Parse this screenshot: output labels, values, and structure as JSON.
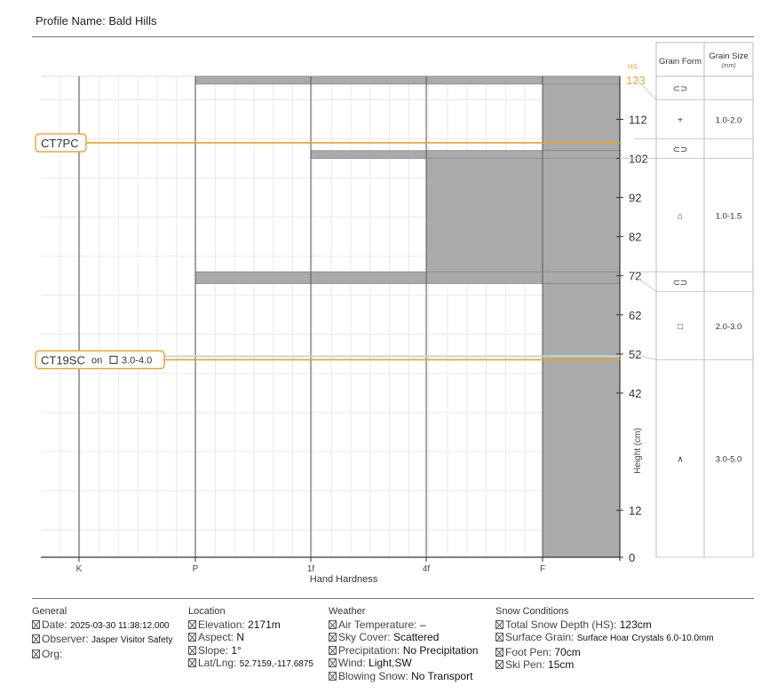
{
  "profile": {
    "label": "Profile Name:",
    "name": "Bald Hills"
  },
  "chart_data": {
    "type": "bar",
    "xlabel": "Hand Hardness",
    "ylabel": "Height (cm)",
    "x_ticks": [
      "K",
      "P",
      "1f",
      "4f",
      "F"
    ],
    "y_ticks": [
      0,
      12,
      42,
      52,
      62,
      72,
      82,
      92,
      102,
      112,
      123
    ],
    "ylim": [
      0,
      123
    ],
    "hs_label": "HS",
    "hs_value": 123,
    "layers": [
      {
        "top": 123,
        "bottom": 72,
        "hardness": "F"
      },
      {
        "top": 123,
        "bottom": 121,
        "hardness": "P"
      },
      {
        "top": 104,
        "bottom": 72,
        "hardness": "4f"
      },
      {
        "top": 104,
        "bottom": 102,
        "hardness": "1f"
      },
      {
        "top": 73,
        "bottom": 70,
        "hardness": "P"
      },
      {
        "top": 70,
        "bottom": 0,
        "hardness": "F"
      }
    ],
    "tests": [
      {
        "label": "CT7PC",
        "height": 106
      },
      {
        "label": "CT19SC",
        "on_text": "on",
        "grain_size": "3.0-4.0",
        "height": 50.5
      }
    ],
    "grain_header": {
      "form": "Grain Form",
      "size": "Grain Size",
      "size_unit": "(mm)"
    },
    "grain_rows": [
      {
        "top": 123,
        "bottom": 117,
        "form": "⊂⊃",
        "size": ""
      },
      {
        "top": 117,
        "bottom": 107,
        "form": "+",
        "size": "1.0-2.0"
      },
      {
        "top": 107,
        "bottom": 102,
        "form": "⊂⊃",
        "size": ""
      },
      {
        "top": 102,
        "bottom": 73,
        "form": "⌂",
        "size": "1.0-1.5"
      },
      {
        "top": 73,
        "bottom": 68,
        "form": "⊂⊃",
        "size": ""
      },
      {
        "top": 68,
        "bottom": 50.5,
        "form": "□",
        "size": "2.0-3.0"
      },
      {
        "top": 50.5,
        "bottom": 0,
        "form": "∧",
        "size": "3.0-5.0"
      }
    ]
  },
  "footer": {
    "general": {
      "title": "General",
      "date_label": "Date:",
      "date_value": "2025-03-30 11:38:12.000",
      "observer_label": "Observer:",
      "observer_value": "Jasper Visitor Safety",
      "org_label": "Org:"
    },
    "location": {
      "title": "Location",
      "elevation_label": "Elevation:",
      "elevation_value": "2171m",
      "aspect_label": "Aspect:",
      "aspect_value": "N",
      "slope_label": "Slope:",
      "slope_value": "1°",
      "latlng_label": "Lat/Lng:",
      "latlng_value": "52.7159,-117.6875"
    },
    "weather": {
      "title": "Weather",
      "air_label": "Air Temperature:",
      "air_value": "–",
      "sky_label": "Sky Cover:",
      "sky_value": "Scattered",
      "precip_label": "Precipitation:",
      "precip_value": "No Precipitation",
      "wind_label": "Wind:",
      "wind_value": "Light,SW",
      "blowing_label": "Blowing Snow:",
      "blowing_value": "No Transport"
    },
    "snow": {
      "title": "Snow Conditions",
      "hs_label": "Total Snow Depth (HS):",
      "hs_value": "123cm",
      "surface_label": "Surface Grain:",
      "surface_value": "Surface Hoar Crystals 6.0-10.0mm",
      "foot_label": "Foot Pen:",
      "foot_value": "70cm",
      "ski_label": "Ski Pen:",
      "ski_value": "15cm"
    }
  }
}
